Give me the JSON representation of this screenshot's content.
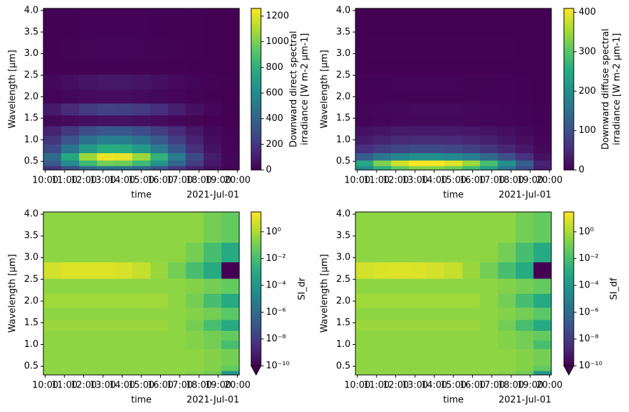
{
  "chart_data": [
    {
      "type": "heatmap",
      "colormap": "viridis",
      "cscale": "linear",
      "x": [
        10.36,
        11.29,
        12.22,
        13.15,
        14.07,
        15.0,
        15.93,
        16.85,
        17.78,
        18.71,
        19.64
      ],
      "y": [
        0.35,
        0.45,
        0.6,
        0.8,
        1.0,
        1.2,
        1.45,
        1.7,
        2.0,
        2.35,
        2.7,
        3.1,
        3.6
      ],
      "z": [
        [
          175,
          300,
          425,
          490,
          485,
          425,
          325,
          210,
          110,
          40,
          10
        ],
        [
          350,
          600,
          850,
          980,
          970,
          850,
          650,
          420,
          220,
          80,
          20
        ],
        [
          438,
          750,
          1063,
          1225,
          1213,
          1063,
          813,
          525,
          275,
          100,
          25
        ],
        [
          280,
          480,
          680,
          784,
          776,
          680,
          520,
          336,
          176,
          64,
          16
        ],
        [
          193,
          330,
          468,
          539,
          534,
          468,
          358,
          231,
          121,
          44,
          11
        ],
        [
          123,
          210,
          298,
          343,
          340,
          298,
          228,
          147,
          77,
          28,
          7
        ],
        [
          21,
          36,
          51,
          59,
          58,
          51,
          39,
          25,
          13,
          5,
          1
        ],
        [
          88,
          150,
          213,
          245,
          243,
          213,
          163,
          105,
          55,
          20,
          5
        ],
        [
          14,
          24,
          34,
          39,
          39,
          34,
          26,
          17,
          9,
          3,
          1
        ],
        [
          28,
          48,
          68,
          78,
          78,
          68,
          52,
          34,
          18,
          6,
          2
        ],
        [
          2,
          3,
          4,
          5,
          5,
          4,
          3,
          2,
          1,
          0,
          0
        ],
        [
          5,
          9,
          13,
          15,
          15,
          13,
          10,
          6,
          3,
          1,
          0
        ],
        [
          3,
          5,
          7,
          8,
          8,
          7,
          5,
          3,
          2,
          1,
          0
        ]
      ],
      "xlim": [
        9.9,
        20.1
      ],
      "ylim": [
        0.3,
        4.05
      ],
      "xticks": [
        {
          "value": 10,
          "label": "10:00"
        },
        {
          "value": 11,
          "label": "11:00"
        },
        {
          "value": 12,
          "label": "12:00"
        },
        {
          "value": 13,
          "label": "13:00"
        },
        {
          "value": 14,
          "label": "14:00"
        },
        {
          "value": 15,
          "label": "15:00"
        },
        {
          "value": 16,
          "label": "16:00"
        },
        {
          "value": 17,
          "label": "17:00"
        },
        {
          "value": 18,
          "label": "18:00"
        },
        {
          "value": 19,
          "label": "19:00"
        },
        {
          "value": 20,
          "label": "20:00"
        }
      ],
      "yticks": [
        0.5,
        {
          "value": 1,
          "label": "1.0"
        },
        1.5,
        {
          "value": 2,
          "label": "2.0"
        },
        2.5,
        {
          "value": 3,
          "label": "3.0"
        },
        3.5,
        {
          "value": 4,
          "label": "4.0"
        }
      ],
      "xlabel": "time",
      "x_offset_label": "2021-Jul-01",
      "ylabel": "Wavelength [µm]",
      "clim": [
        0,
        1260
      ],
      "cticks": [
        0,
        200,
        400,
        600,
        800,
        1000,
        1200
      ],
      "colorbar_label": [
        "Downward direct spectral",
        "irradiance [W m-2 µm-1]"
      ]
    },
    {
      "type": "heatmap",
      "colormap": "viridis",
      "cscale": "linear",
      "x": [
        10.36,
        11.29,
        12.22,
        13.15,
        14.07,
        15.0,
        15.93,
        16.85,
        17.78,
        18.71,
        19.64
      ],
      "y": [
        0.35,
        0.45,
        0.6,
        0.8,
        1.0,
        1.2,
        1.45,
        1.7,
        2.0,
        2.35,
        2.7,
        3.1,
        3.6
      ],
      "z": [
        [
          198,
          264,
          307,
          330,
          330,
          314,
          281,
          231,
          165,
          99,
          33
        ],
        [
          246,
          328,
          381,
          410,
          410,
          390,
          349,
          287,
          205,
          123,
          41
        ],
        [
          120,
          160,
          186,
          200,
          200,
          190,
          170,
          140,
          100,
          60,
          20
        ],
        [
          54,
          72,
          84,
          90,
          90,
          86,
          77,
          63,
          45,
          27,
          9
        ],
        [
          30,
          40,
          47,
          50,
          50,
          48,
          43,
          35,
          25,
          15,
          5
        ],
        [
          18,
          24,
          28,
          30,
          30,
          29,
          26,
          21,
          15,
          9,
          3
        ],
        [
          5,
          6,
          7,
          8,
          8,
          8,
          7,
          6,
          4,
          2,
          1
        ],
        [
          6,
          8,
          9,
          10,
          10,
          10,
          9,
          7,
          5,
          3,
          1
        ],
        [
          2,
          2,
          3,
          3,
          3,
          3,
          3,
          2,
          2,
          1,
          0
        ],
        [
          2,
          3,
          4,
          4,
          4,
          4,
          3,
          3,
          2,
          1,
          0
        ],
        [
          0,
          0,
          0,
          0,
          0,
          0,
          0,
          0,
          0,
          0,
          0
        ],
        [
          1,
          1,
          1,
          1,
          1,
          1,
          1,
          1,
          1,
          0,
          0
        ],
        [
          0,
          0,
          0,
          0,
          0,
          0,
          0,
          0,
          0,
          0,
          0
        ]
      ],
      "xlim": [
        9.9,
        20.1
      ],
      "ylim": [
        0.3,
        4.05
      ],
      "xticks": [
        {
          "value": 10,
          "label": "10:00"
        },
        {
          "value": 11,
          "label": "11:00"
        },
        {
          "value": 12,
          "label": "12:00"
        },
        {
          "value": 13,
          "label": "13:00"
        },
        {
          "value": 14,
          "label": "14:00"
        },
        {
          "value": 15,
          "label": "15:00"
        },
        {
          "value": 16,
          "label": "16:00"
        },
        {
          "value": 17,
          "label": "17:00"
        },
        {
          "value": 18,
          "label": "18:00"
        },
        {
          "value": 19,
          "label": "19:00"
        },
        {
          "value": 20,
          "label": "20:00"
        }
      ],
      "yticks": [
        0.5,
        {
          "value": 1,
          "label": "1.0"
        },
        1.5,
        {
          "value": 2,
          "label": "2.0"
        },
        2.5,
        {
          "value": 3,
          "label": "3.0"
        },
        3.5,
        {
          "value": 4,
          "label": "4.0"
        }
      ],
      "xlabel": "time",
      "x_offset_label": "2021-Jul-01",
      "ylabel": "Wavelength [µm]",
      "clim": [
        0,
        410
      ],
      "cticks": [
        0,
        100,
        200,
        300,
        400
      ],
      "colorbar_label": [
        "Downward diffuse spectral",
        "irradiance [W m-2 µm-1]"
      ]
    },
    {
      "type": "heatmap",
      "colormap": "viridis",
      "cscale": "log",
      "extend": "min",
      "x": [
        10.36,
        11.29,
        12.22,
        13.15,
        14.07,
        15.0,
        15.93,
        16.85,
        17.78,
        18.71,
        19.64
      ],
      "y": [
        0.35,
        0.45,
        0.6,
        0.8,
        1.0,
        1.2,
        1.45,
        1.7,
        2.0,
        2.35,
        2.7,
        3.1,
        3.6
      ],
      "z": [
        [
          0.3,
          0.3,
          0.3,
          0.3,
          0.3,
          0.3,
          0.3,
          0.3,
          0.2,
          0.1,
          0.0001
        ],
        [
          0.3,
          0.3,
          0.3,
          0.3,
          0.3,
          0.3,
          0.3,
          0.3,
          0.3,
          0.2,
          0.05
        ],
        [
          0.3,
          0.3,
          0.3,
          0.3,
          0.3,
          0.3,
          0.3,
          0.3,
          0.3,
          0.2,
          0.1
        ],
        [
          0.3,
          0.3,
          0.3,
          0.3,
          0.3,
          0.3,
          0.3,
          0.3,
          0.3,
          0.2,
          0.1
        ],
        [
          0.3,
          0.3,
          0.3,
          0.3,
          0.3,
          0.3,
          0.3,
          0.3,
          0.2,
          0.1,
          0.01
        ],
        [
          0.3,
          0.3,
          0.3,
          0.3,
          0.3,
          0.3,
          0.3,
          0.3,
          0.2,
          0.1,
          0.05
        ],
        [
          0.5,
          0.5,
          0.5,
          0.5,
          0.5,
          0.5,
          0.5,
          0.3,
          0.1,
          0.01,
          0.001
        ],
        [
          0.3,
          0.3,
          0.3,
          0.3,
          0.3,
          0.3,
          0.3,
          0.3,
          0.2,
          0.1,
          0.03
        ],
        [
          0.6,
          0.6,
          0.6,
          0.6,
          0.6,
          0.6,
          0.6,
          0.3,
          0.1,
          0.01,
          0.001
        ],
        [
          0.3,
          0.3,
          0.3,
          0.3,
          0.3,
          0.3,
          0.3,
          0.3,
          0.2,
          0.1,
          0.05
        ],
        [
          5,
          8,
          8,
          8,
          6,
          3,
          0.5,
          0.1,
          0.01,
          0.001,
          1e-10
        ],
        [
          0.3,
          0.3,
          0.3,
          0.3,
          0.3,
          0.3,
          0.3,
          0.3,
          0.1,
          0.01,
          0.001
        ],
        [
          0.3,
          0.3,
          0.3,
          0.3,
          0.3,
          0.3,
          0.3,
          0.3,
          0.3,
          0.1,
          0.05
        ]
      ],
      "xlim": [
        9.9,
        20.1
      ],
      "ylim": [
        0.3,
        4.05
      ],
      "xticks": [
        {
          "value": 10,
          "label": "10:00"
        },
        {
          "value": 11,
          "label": "11:00"
        },
        {
          "value": 12,
          "label": "12:00"
        },
        {
          "value": 13,
          "label": "13:00"
        },
        {
          "value": 14,
          "label": "14:00"
        },
        {
          "value": 15,
          "label": "15:00"
        },
        {
          "value": 16,
          "label": "16:00"
        },
        {
          "value": 17,
          "label": "17:00"
        },
        {
          "value": 18,
          "label": "18:00"
        },
        {
          "value": 19,
          "label": "19:00"
        },
        {
          "value": 20,
          "label": "20:00"
        }
      ],
      "yticks": [
        0.5,
        {
          "value": 1,
          "label": "1.0"
        },
        1.5,
        {
          "value": 2,
          "label": "2.0"
        },
        2.5,
        {
          "value": 3,
          "label": "3.0"
        },
        3.5,
        {
          "value": 4,
          "label": "4.0"
        }
      ],
      "xlabel": "time",
      "x_offset_label": "2021-Jul-01",
      "ylabel": "Wavelength [µm]",
      "clim": [
        1e-10,
        30
      ],
      "cticks": [
        {
          "value": 1,
          "label": "10⁰"
        },
        {
          "value": 0.01,
          "label": "10⁻²"
        },
        {
          "value": 0.0001,
          "label": "10⁻⁴"
        },
        {
          "value": 1e-06,
          "label": "10⁻⁶"
        },
        {
          "value": 1e-08,
          "label": "10⁻⁸"
        },
        {
          "value": 1e-10,
          "label": "10⁻¹⁰"
        }
      ],
      "colorbar_label": [
        "SI_dr"
      ]
    },
    {
      "type": "heatmap",
      "colormap": "viridis",
      "cscale": "log",
      "extend": "min",
      "x": [
        10.36,
        11.29,
        12.22,
        13.15,
        14.07,
        15.0,
        15.93,
        16.85,
        17.78,
        18.71,
        19.64
      ],
      "y": [
        0.35,
        0.45,
        0.6,
        0.8,
        1.0,
        1.2,
        1.45,
        1.7,
        2.0,
        2.35,
        2.7,
        3.1,
        3.6
      ],
      "z": [
        [
          0.3,
          0.3,
          0.3,
          0.3,
          0.3,
          0.3,
          0.3,
          0.3,
          0.2,
          0.1,
          0.0001
        ],
        [
          0.3,
          0.3,
          0.3,
          0.3,
          0.3,
          0.3,
          0.3,
          0.3,
          0.3,
          0.2,
          0.05
        ],
        [
          0.3,
          0.3,
          0.3,
          0.3,
          0.3,
          0.3,
          0.3,
          0.3,
          0.3,
          0.2,
          0.1
        ],
        [
          0.3,
          0.3,
          0.3,
          0.3,
          0.3,
          0.3,
          0.3,
          0.3,
          0.3,
          0.2,
          0.1
        ],
        [
          0.3,
          0.3,
          0.3,
          0.3,
          0.3,
          0.3,
          0.3,
          0.3,
          0.2,
          0.1,
          0.01
        ],
        [
          0.3,
          0.3,
          0.3,
          0.3,
          0.3,
          0.3,
          0.3,
          0.3,
          0.2,
          0.1,
          0.05
        ],
        [
          0.5,
          0.5,
          0.5,
          0.5,
          0.5,
          0.5,
          0.5,
          0.3,
          0.1,
          0.01,
          0.001
        ],
        [
          0.3,
          0.3,
          0.3,
          0.3,
          0.3,
          0.3,
          0.3,
          0.3,
          0.2,
          0.1,
          0.03
        ],
        [
          0.6,
          0.6,
          0.6,
          0.6,
          0.6,
          0.6,
          0.6,
          0.3,
          0.1,
          0.01,
          0.001
        ],
        [
          0.3,
          0.3,
          0.3,
          0.3,
          0.3,
          0.3,
          0.3,
          0.3,
          0.2,
          0.1,
          0.05
        ],
        [
          5,
          7,
          8,
          7,
          5,
          3,
          0.5,
          0.1,
          0.01,
          0.001,
          1e-10
        ],
        [
          0.3,
          0.3,
          0.3,
          0.3,
          0.3,
          0.3,
          0.3,
          0.3,
          0.1,
          0.01,
          0.001
        ],
        [
          0.3,
          0.3,
          0.3,
          0.3,
          0.3,
          0.3,
          0.3,
          0.3,
          0.3,
          0.1,
          0.05
        ]
      ],
      "xlim": [
        9.9,
        20.1
      ],
      "ylim": [
        0.3,
        4.05
      ],
      "xticks": [
        {
          "value": 10,
          "label": "10:00"
        },
        {
          "value": 11,
          "label": "11:00"
        },
        {
          "value": 12,
          "label": "12:00"
        },
        {
          "value": 13,
          "label": "13:00"
        },
        {
          "value": 14,
          "label": "14:00"
        },
        {
          "value": 15,
          "label": "15:00"
        },
        {
          "value": 16,
          "label": "16:00"
        },
        {
          "value": 17,
          "label": "17:00"
        },
        {
          "value": 18,
          "label": "18:00"
        },
        {
          "value": 19,
          "label": "19:00"
        },
        {
          "value": 20,
          "label": "20:00"
        }
      ],
      "yticks": [
        0.5,
        {
          "value": 1,
          "label": "1.0"
        },
        1.5,
        {
          "value": 2,
          "label": "2.0"
        },
        2.5,
        {
          "value": 3,
          "label": "3.0"
        },
        3.5,
        {
          "value": 4,
          "label": "4.0"
        }
      ],
      "xlabel": "time",
      "x_offset_label": "2021-Jul-01",
      "ylabel": "Wavelength [µm]",
      "clim": [
        1e-10,
        30
      ],
      "cticks": [
        {
          "value": 1,
          "label": "10⁰"
        },
        {
          "value": 0.01,
          "label": "10⁻²"
        },
        {
          "value": 0.0001,
          "label": "10⁻⁴"
        },
        {
          "value": 1e-06,
          "label": "10⁻⁶"
        },
        {
          "value": 1e-08,
          "label": "10⁻⁸"
        },
        {
          "value": 1e-10,
          "label": "10⁻¹⁰"
        }
      ],
      "colorbar_label": [
        "SI_df"
      ]
    }
  ]
}
